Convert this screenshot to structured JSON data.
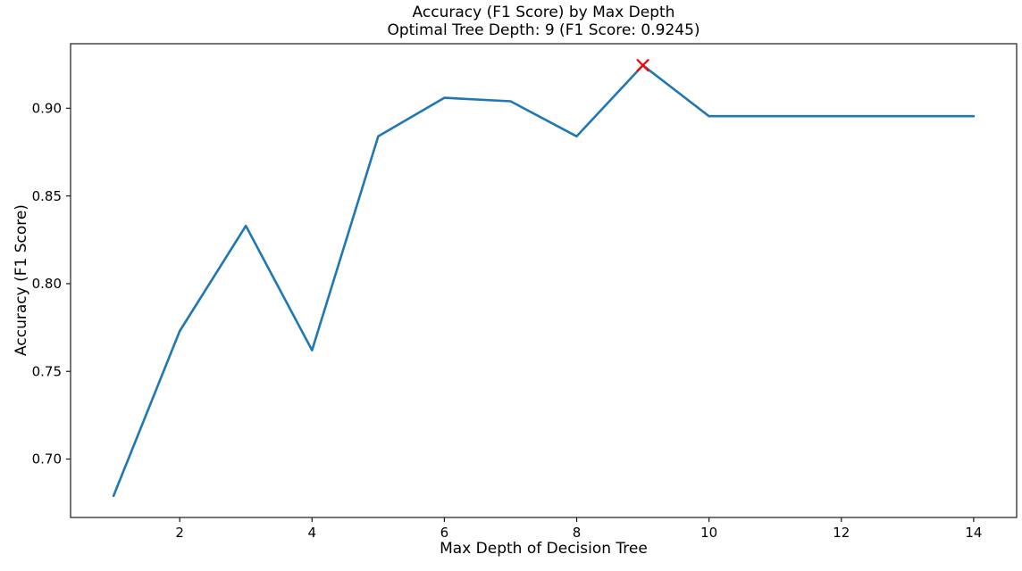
{
  "chart_data": {
    "type": "line",
    "title": "Accuracy (F1 Score) by Max Depth",
    "subtitle": "Optimal Tree Depth: 9 (F1 Score: 0.9245)",
    "xlabel": "Max Depth of Decision Tree",
    "ylabel": "Accuracy (F1 Score)",
    "x": [
      1,
      2,
      3,
      4,
      5,
      6,
      7,
      8,
      9,
      10,
      11,
      12,
      13,
      14
    ],
    "y": [
      0.679,
      0.773,
      0.833,
      0.762,
      0.884,
      0.906,
      0.904,
      0.884,
      0.9245,
      0.8955,
      0.8955,
      0.8955,
      0.8955,
      0.8955
    ],
    "xticks": [
      2,
      4,
      6,
      8,
      10,
      12,
      14
    ],
    "yticks": [
      0.7,
      0.75,
      0.8,
      0.85,
      0.9
    ],
    "xlim": [
      0.35,
      14.65
    ],
    "ylim": [
      0.6667,
      0.9368
    ],
    "grid": false,
    "legend": null,
    "line_color": "#1f77b4",
    "spine_color": "#1a1a1a",
    "optimal_marker": {
      "x": 9,
      "y": 0.9245,
      "shape": "x",
      "color": "#ff0000",
      "label": "optimal tree depth"
    }
  }
}
